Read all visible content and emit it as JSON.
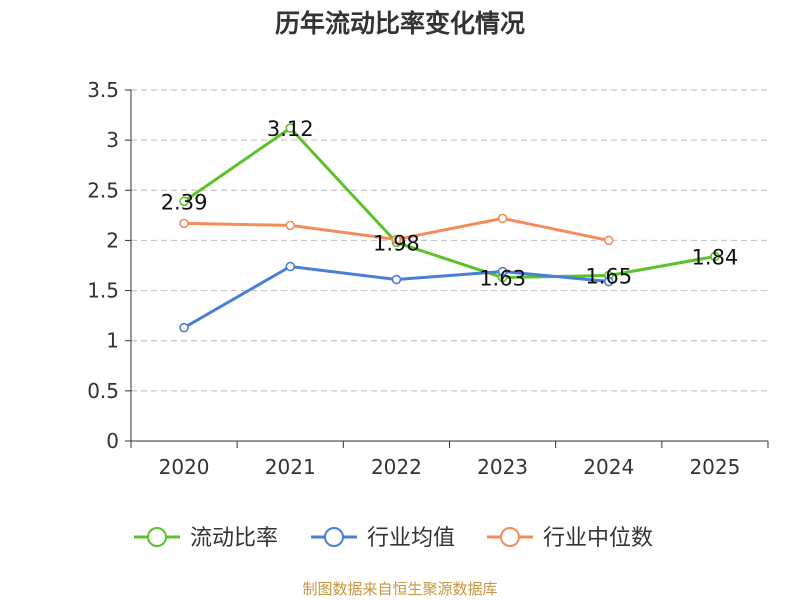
{
  "chart_data": {
    "type": "line",
    "title": "历年流动比率变化情况",
    "categories": [
      "2020",
      "2021",
      "2022",
      "2023",
      "2024",
      "2025"
    ],
    "ylim": [
      0,
      3.5
    ],
    "yticks": [
      "0",
      "0.5",
      "1",
      "1.5",
      "2",
      "2.5",
      "3",
      "3.5"
    ],
    "ytick_values": [
      0,
      0.5,
      1,
      1.5,
      2,
      2.5,
      3,
      3.5
    ],
    "grid": true,
    "legend_position": "bottom",
    "series": [
      {
        "name": "流动比率",
        "color": "#5cc12b",
        "values": [
          2.39,
          3.12,
          1.98,
          1.63,
          1.65,
          1.84
        ],
        "labels": [
          "2.39",
          "3.12",
          "1.98",
          "1.63",
          "1.65",
          "1.84"
        ]
      },
      {
        "name": "行业均值",
        "color": "#4a7fd6",
        "values": [
          1.13,
          1.74,
          1.61,
          1.69,
          1.59,
          null
        ]
      },
      {
        "name": "行业中位数",
        "color": "#f48c5a",
        "values": [
          2.17,
          2.15,
          2.01,
          2.22,
          2.0,
          null
        ]
      }
    ]
  },
  "footer": "制图数据来自恒生聚源数据库"
}
